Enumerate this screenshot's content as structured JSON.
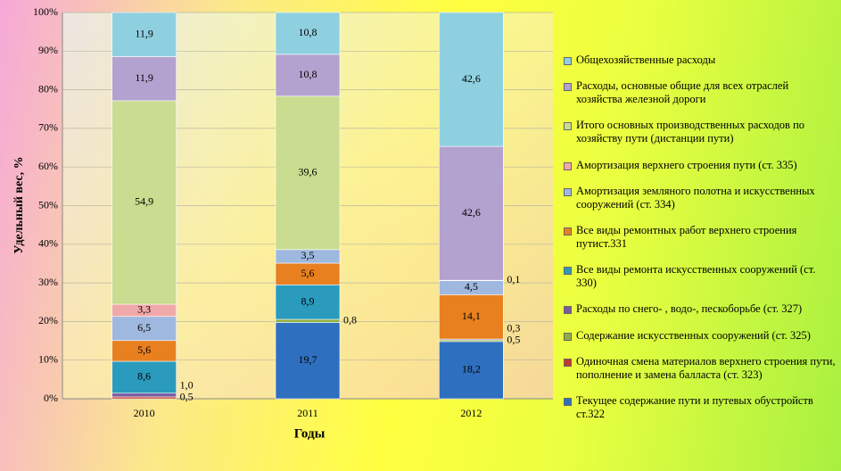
{
  "chart_data": {
    "type": "stacked100",
    "categories": [
      "2010",
      "2011",
      "2012"
    ],
    "x_label": "Годы",
    "y_label": "Удельный вес, %",
    "ylim": [
      0,
      100
    ],
    "yticks": [
      {
        "value": 0,
        "label": "0%"
      },
      {
        "value": 10,
        "label": "10%"
      },
      {
        "value": 20,
        "label": "20%"
      },
      {
        "value": 30,
        "label": "30%"
      },
      {
        "value": 40,
        "label": "40%"
      },
      {
        "value": 50,
        "label": "50%"
      },
      {
        "value": 60,
        "label": "60%"
      },
      {
        "value": 70,
        "label": "70%"
      },
      {
        "value": 80,
        "label": "80%"
      },
      {
        "value": 90,
        "label": "90%"
      },
      {
        "value": 100,
        "label": "100%"
      }
    ],
    "grid": true,
    "series": [
      {
        "name": "Текущее содержание пути и путевых обустройств ст.322",
        "color": "#2f6fbf",
        "values": [
          null,
          19.7,
          18.2
        ],
        "value_labels": [
          null,
          "19,7",
          "18,2"
        ]
      },
      {
        "name": "Одиночная смена материалов верхнего строения пути, пополнение и замена балласта (ст. 323)",
        "color": "#c0392b",
        "values": [
          0.5,
          null,
          null
        ],
        "value_labels": [
          "0,5",
          null,
          null
        ]
      },
      {
        "name": "Содержание искусственных сооружений (ст. 325)",
        "color": "#8fb040",
        "values": [
          null,
          0.8,
          0.5
        ],
        "value_labels": [
          null,
          "0,8",
          "0,5"
        ]
      },
      {
        "name": "Расходы по снего- , водо-, пескоборьбе (ст. 327)",
        "color": "#7a5aa0",
        "values": [
          1.0,
          null,
          0.3
        ],
        "value_labels": [
          "1,0",
          null,
          "0,3"
        ]
      },
      {
        "name": "Все виды ремонта искусственных  сооружений (ст. 330)",
        "color": "#2a9bbd",
        "values": [
          8.6,
          8.9,
          null
        ],
        "value_labels": [
          "8,6",
          "8,9",
          null
        ]
      },
      {
        "name": "Все виды ремонтных работ верхнего строения путист.331",
        "color": "#e8801f",
        "values": [
          5.6,
          5.6,
          14.1
        ],
        "value_labels": [
          "5,6",
          "5,6",
          "14,1"
        ]
      },
      {
        "name": "Амортизация земляного полотна и искусственных сооружений (ст. 334)",
        "color": "#9fb8e0",
        "values": [
          6.5,
          3.5,
          4.5
        ],
        "value_labels": [
          "6,5",
          "3,5",
          "4,5"
        ]
      },
      {
        "name": "Амортизация верхнего строения пути (ст. 335)",
        "color": "#f0a8a8",
        "values": [
          3.3,
          null,
          0.1
        ],
        "value_labels": [
          "3,3",
          null,
          "0,1"
        ]
      },
      {
        "name": "Итого основных производственных расходов по хозяйству пути (дистанции пути)",
        "color": "#c9dc8f",
        "values": [
          54.9,
          39.6,
          null
        ],
        "value_labels": [
          "54,9",
          "39,6",
          null
        ]
      },
      {
        "name": "Расходы, основные общие для всех отраслей хозяйства железной дороги",
        "color": "#b3a2cf",
        "values": [
          11.9,
          10.8,
          42.6
        ],
        "value_labels": [
          "11,9",
          "10,8",
          "42,6"
        ]
      },
      {
        "name": "Общехозяйственные расходы",
        "color": "#8fd0e0",
        "values": [
          11.9,
          10.8,
          42.6
        ],
        "value_labels": [
          "11,9",
          "10,8",
          "42,6"
        ]
      }
    ]
  }
}
